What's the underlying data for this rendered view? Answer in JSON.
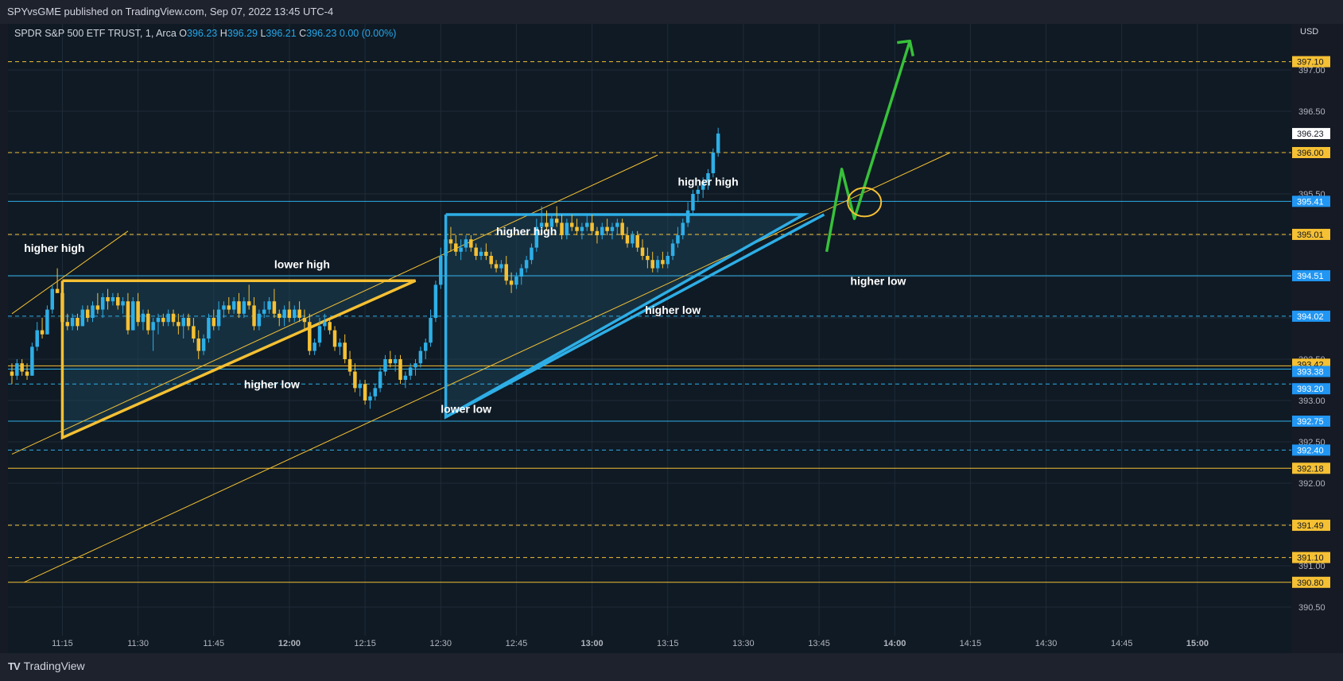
{
  "header": {
    "published": "SPYvsGME published on TradingView.com, Sep 07, 2022 13:45 UTC-4"
  },
  "legend": {
    "symbol": "SPDR S&P 500 ETF TRUST, 1, Arca",
    "o_label": "O",
    "o": "396.23",
    "h_label": "H",
    "h": "396.29",
    "l_label": "L",
    "l": "396.21",
    "c_label": "C",
    "c": "396.23",
    "change": "0.00 (0.00%)"
  },
  "price_axis": {
    "currency": "USD"
  },
  "footer": {
    "brand": "TradingView",
    "logo_icon": "tradingview-logo-icon"
  },
  "colors": {
    "yellow": "#f5c033",
    "blue": "#2eaee6",
    "green": "#37c13a",
    "grid": "#1f2b37",
    "label_bg_yellow": "#f5c033",
    "label_bg_blue": "#2196f3"
  },
  "chart_data": {
    "type": "candlestick",
    "symbol": "SPY",
    "interval": "1",
    "ylim": [
      390.2,
      397.6
    ],
    "y_ticks": [
      "390.50",
      "391.00",
      "391.50",
      "392.00",
      "392.50",
      "393.00",
      "393.50",
      "394.00",
      "394.50",
      "395.00",
      "395.50",
      "396.00",
      "396.50",
      "397.00"
    ],
    "x_ticks": [
      "11:15",
      "11:30",
      "11:45",
      "12:00",
      "12:15",
      "12:30",
      "12:45",
      "13:00",
      "13:15",
      "13:30",
      "13:45",
      "14:00",
      "14:15",
      "14:30",
      "14:45",
      "15:00"
    ],
    "x_tick_minutes": [
      675,
      690,
      705,
      720,
      735,
      750,
      765,
      780,
      795,
      810,
      825,
      840,
      855,
      870,
      885,
      900
    ],
    "x_range_minutes": [
      665,
      909
    ],
    "current_price": "396.23",
    "horizontal_levels": [
      {
        "price": 397.1,
        "label": "397.10",
        "color": "yellow",
        "style": "dashed"
      },
      {
        "price": 396.0,
        "label": "396.00",
        "color": "yellow",
        "style": "dashed"
      },
      {
        "price": 395.41,
        "label": "395.41",
        "color": "blue",
        "style": "solid"
      },
      {
        "price": 395.01,
        "label": "395.01",
        "color": "yellow",
        "style": "dashed"
      },
      {
        "price": 394.51,
        "label": "394.51",
        "color": "blue",
        "style": "solid"
      },
      {
        "price": 394.02,
        "label": "394.02",
        "color": "blue",
        "style": "dashed"
      },
      {
        "price": 393.42,
        "label": "393.42",
        "color": "yellow",
        "style": "solid"
      },
      {
        "price": 393.38,
        "label": "393.38",
        "color": "blue",
        "style": "solid"
      },
      {
        "price": 393.2,
        "label": "393.20",
        "color": "blue",
        "style": "dashed"
      },
      {
        "price": 392.75,
        "label": "392.75",
        "color": "blue",
        "style": "solid"
      },
      {
        "price": 392.4,
        "label": "392.40",
        "color": "blue",
        "style": "dashed"
      },
      {
        "price": 392.18,
        "label": "392.18",
        "color": "yellow",
        "style": "solid"
      },
      {
        "price": 391.49,
        "label": "391.49",
        "color": "yellow",
        "style": "dashed"
      },
      {
        "price": 391.1,
        "label": "391.10",
        "color": "yellow",
        "style": "dashed"
      },
      {
        "price": 390.8,
        "label": "390.80",
        "color": "yellow",
        "style": "solid"
      }
    ],
    "candles": [
      [
        665,
        393.35,
        393.45,
        393.2,
        393.3
      ],
      [
        666,
        393.3,
        393.5,
        393.25,
        393.45
      ],
      [
        667,
        393.45,
        393.5,
        393.3,
        393.35
      ],
      [
        668,
        393.35,
        393.45,
        393.25,
        393.3
      ],
      [
        669,
        393.3,
        393.7,
        393.3,
        393.65
      ],
      [
        670,
        393.65,
        393.95,
        393.6,
        393.85
      ],
      [
        671,
        393.85,
        394.0,
        393.75,
        393.8
      ],
      [
        672,
        393.8,
        394.15,
        393.8,
        394.1
      ],
      [
        673,
        394.1,
        394.4,
        394.05,
        394.35
      ],
      [
        674,
        394.35,
        394.6,
        394.3,
        394.3
      ],
      [
        675,
        394.3,
        394.35,
        393.85,
        393.95
      ],
      [
        676,
        393.95,
        394.05,
        393.85,
        393.9
      ],
      [
        677,
        393.9,
        394.05,
        393.85,
        394.0
      ],
      [
        678,
        394.0,
        394.05,
        393.85,
        393.9
      ],
      [
        679,
        393.9,
        394.15,
        393.9,
        394.1
      ],
      [
        680,
        394.1,
        394.15,
        393.95,
        394.0
      ],
      [
        681,
        394.0,
        394.2,
        393.95,
        394.15
      ],
      [
        682,
        394.15,
        394.3,
        394.05,
        394.1
      ],
      [
        683,
        394.1,
        394.3,
        394.0,
        394.25
      ],
      [
        684,
        394.25,
        394.35,
        394.1,
        394.2
      ],
      [
        685,
        394.2,
        394.3,
        394.15,
        394.25
      ],
      [
        686,
        394.25,
        394.3,
        394.1,
        394.15
      ],
      [
        687,
        394.15,
        394.25,
        394.05,
        394.2
      ],
      [
        688,
        394.2,
        394.3,
        393.8,
        393.85
      ],
      [
        689,
        393.85,
        394.25,
        393.85,
        394.2
      ],
      [
        690,
        394.2,
        394.3,
        393.9,
        393.95
      ],
      [
        691,
        393.95,
        394.1,
        393.85,
        394.05
      ],
      [
        692,
        394.05,
        394.1,
        393.8,
        393.85
      ],
      [
        693,
        393.85,
        394.0,
        393.6,
        393.95
      ],
      [
        694,
        393.95,
        394.05,
        393.8,
        394.0
      ],
      [
        695,
        394.0,
        394.05,
        393.9,
        393.95
      ],
      [
        696,
        393.95,
        394.1,
        393.9,
        394.05
      ],
      [
        697,
        394.05,
        394.1,
        393.9,
        393.95
      ],
      [
        698,
        393.95,
        394.05,
        393.8,
        393.9
      ],
      [
        699,
        393.9,
        394.05,
        393.75,
        394.0
      ],
      [
        700,
        394.0,
        394.05,
        393.85,
        393.9
      ],
      [
        701,
        393.9,
        394.0,
        393.7,
        393.75
      ],
      [
        702,
        393.75,
        393.85,
        393.5,
        393.6
      ],
      [
        703,
        393.6,
        393.8,
        393.55,
        393.75
      ],
      [
        704,
        393.75,
        394.05,
        393.7,
        394.0
      ],
      [
        705,
        394.0,
        394.1,
        393.85,
        393.9
      ],
      [
        706,
        393.9,
        394.2,
        393.85,
        394.1
      ],
      [
        707,
        394.1,
        394.2,
        394.0,
        394.15
      ],
      [
        708,
        394.15,
        394.25,
        394.05,
        394.1
      ],
      [
        709,
        394.1,
        394.25,
        394.05,
        394.2
      ],
      [
        710,
        394.2,
        394.3,
        394.0,
        394.05
      ],
      [
        711,
        394.05,
        394.25,
        394.0,
        394.2
      ],
      [
        712,
        394.2,
        394.4,
        394.1,
        394.15
      ],
      [
        713,
        394.15,
        394.25,
        393.85,
        393.9
      ],
      [
        714,
        393.9,
        394.1,
        393.85,
        394.05
      ],
      [
        715,
        394.05,
        394.2,
        394.0,
        394.1
      ],
      [
        716,
        394.1,
        394.25,
        394.05,
        394.2
      ],
      [
        717,
        394.2,
        394.35,
        394.0,
        394.05
      ],
      [
        718,
        394.05,
        394.1,
        393.9,
        394.0
      ],
      [
        719,
        394.0,
        394.15,
        393.9,
        394.1
      ],
      [
        720,
        394.1,
        394.2,
        393.95,
        394.0
      ],
      [
        721,
        394.0,
        394.15,
        393.95,
        394.1
      ],
      [
        722,
        394.1,
        394.2,
        393.95,
        394.0
      ],
      [
        723,
        394.0,
        394.1,
        393.85,
        393.95
      ],
      [
        724,
        393.95,
        394.05,
        393.55,
        393.6
      ],
      [
        725,
        393.6,
        393.75,
        393.55,
        393.7
      ],
      [
        726,
        393.7,
        394.0,
        393.65,
        393.9
      ],
      [
        727,
        393.9,
        394.05,
        393.85,
        393.95
      ],
      [
        728,
        393.95,
        394.0,
        393.8,
        393.85
      ],
      [
        729,
        393.85,
        393.9,
        393.6,
        393.65
      ],
      [
        730,
        393.65,
        393.75,
        393.55,
        393.7
      ],
      [
        731,
        393.7,
        393.8,
        393.45,
        393.5
      ],
      [
        732,
        393.5,
        393.6,
        393.3,
        393.35
      ],
      [
        733,
        393.35,
        393.45,
        393.1,
        393.15
      ],
      [
        734,
        393.15,
        393.25,
        393.05,
        393.2
      ],
      [
        735,
        393.2,
        393.25,
        392.95,
        393.0
      ],
      [
        736,
        393.0,
        393.1,
        392.9,
        393.05
      ],
      [
        737,
        393.05,
        393.2,
        393.0,
        393.15
      ],
      [
        738,
        393.15,
        393.4,
        393.1,
        393.35
      ],
      [
        739,
        393.35,
        393.55,
        393.3,
        393.5
      ],
      [
        740,
        393.5,
        393.6,
        393.4,
        393.45
      ],
      [
        741,
        393.45,
        393.55,
        393.35,
        393.5
      ],
      [
        742,
        393.5,
        393.55,
        393.2,
        393.25
      ],
      [
        743,
        393.25,
        393.35,
        393.15,
        393.3
      ],
      [
        744,
        393.3,
        393.45,
        393.25,
        393.4
      ],
      [
        745,
        393.4,
        393.5,
        393.3,
        393.45
      ],
      [
        746,
        393.45,
        393.65,
        393.4,
        393.6
      ],
      [
        747,
        393.6,
        393.75,
        393.5,
        393.7
      ],
      [
        748,
        393.7,
        394.1,
        393.65,
        394.0
      ],
      [
        749,
        394.0,
        394.45,
        393.95,
        394.4
      ],
      [
        750,
        394.4,
        394.85,
        394.35,
        394.75
      ],
      [
        751,
        394.75,
        395.05,
        394.7,
        394.95
      ],
      [
        752,
        394.95,
        395.1,
        394.8,
        394.9
      ],
      [
        753,
        394.9,
        395.0,
        394.75,
        394.8
      ],
      [
        754,
        394.8,
        394.95,
        394.7,
        394.85
      ],
      [
        755,
        394.85,
        395.0,
        394.8,
        394.95
      ],
      [
        756,
        394.95,
        395.0,
        394.8,
        394.85
      ],
      [
        757,
        394.85,
        394.9,
        394.7,
        394.75
      ],
      [
        758,
        394.75,
        394.85,
        394.7,
        394.8
      ],
      [
        759,
        394.8,
        394.9,
        394.7,
        394.75
      ],
      [
        760,
        394.75,
        394.8,
        394.6,
        394.65
      ],
      [
        761,
        394.65,
        394.7,
        394.55,
        394.6
      ],
      [
        762,
        394.6,
        394.7,
        394.55,
        394.65
      ],
      [
        763,
        394.65,
        394.75,
        394.4,
        394.45
      ],
      [
        764,
        394.45,
        394.55,
        394.3,
        394.4
      ],
      [
        765,
        394.4,
        394.55,
        394.35,
        394.5
      ],
      [
        766,
        394.5,
        394.65,
        394.4,
        394.6
      ],
      [
        767,
        394.6,
        394.75,
        394.55,
        394.7
      ],
      [
        768,
        394.7,
        394.9,
        394.65,
        394.85
      ],
      [
        769,
        394.85,
        395.2,
        394.8,
        395.1
      ],
      [
        770,
        395.1,
        395.35,
        395.0,
        395.15
      ],
      [
        771,
        395.15,
        395.3,
        395.05,
        395.1
      ],
      [
        772,
        395.1,
        395.25,
        395.0,
        395.2
      ],
      [
        773,
        395.2,
        395.35,
        395.1,
        395.15
      ],
      [
        774,
        395.15,
        395.25,
        394.95,
        395.0
      ],
      [
        775,
        395.0,
        395.2,
        394.95,
        395.15
      ],
      [
        776,
        395.15,
        395.25,
        395.05,
        395.1
      ],
      [
        777,
        395.1,
        395.2,
        395.0,
        395.05
      ],
      [
        778,
        395.05,
        395.15,
        394.95,
        395.1
      ],
      [
        779,
        395.1,
        395.25,
        395.05,
        395.15
      ],
      [
        780,
        395.15,
        395.25,
        395.0,
        395.05
      ],
      [
        781,
        395.05,
        395.1,
        394.9,
        395.0
      ],
      [
        782,
        395.0,
        395.15,
        394.95,
        395.1
      ],
      [
        783,
        395.1,
        395.2,
        395.0,
        395.05
      ],
      [
        784,
        395.05,
        395.15,
        394.95,
        395.1
      ],
      [
        785,
        395.1,
        395.2,
        395.0,
        395.15
      ],
      [
        786,
        395.15,
        395.2,
        394.95,
        395.0
      ],
      [
        787,
        395.0,
        395.1,
        394.85,
        394.9
      ],
      [
        788,
        394.9,
        395.05,
        394.85,
        395.0
      ],
      [
        789,
        395.0,
        395.05,
        394.8,
        394.85
      ],
      [
        790,
        394.85,
        394.95,
        394.7,
        394.75
      ],
      [
        791,
        394.75,
        394.85,
        394.6,
        394.7
      ],
      [
        792,
        394.7,
        394.8,
        394.55,
        394.6
      ],
      [
        793,
        394.6,
        394.75,
        394.55,
        394.7
      ],
      [
        794,
        394.7,
        394.8,
        394.6,
        394.65
      ],
      [
        795,
        394.65,
        394.8,
        394.6,
        394.75
      ],
      [
        796,
        394.75,
        394.95,
        394.7,
        394.9
      ],
      [
        797,
        394.9,
        395.1,
        394.85,
        395.0
      ],
      [
        798,
        395.0,
        395.2,
        394.95,
        395.15
      ],
      [
        799,
        395.15,
        395.4,
        395.1,
        395.3
      ],
      [
        800,
        395.3,
        395.55,
        395.25,
        395.5
      ],
      [
        801,
        395.5,
        395.6,
        395.4,
        395.55
      ],
      [
        802,
        395.55,
        395.7,
        395.45,
        395.65
      ],
      [
        803,
        395.65,
        395.8,
        395.55,
        395.75
      ],
      [
        804,
        395.75,
        396.05,
        395.7,
        396.0
      ],
      [
        805,
        396.0,
        396.3,
        395.95,
        396.23
      ]
    ]
  },
  "annotations": {
    "labels": [
      {
        "text": "higher high",
        "price": 394.8,
        "time": 667.4
      },
      {
        "text": "lower high",
        "price": 394.6,
        "time": 717
      },
      {
        "text": "higher low",
        "price": 393.15,
        "time": 711
      },
      {
        "text": "higher high",
        "price": 395.0,
        "time": 761
      },
      {
        "text": "lower low",
        "price": 392.85,
        "time": 750
      },
      {
        "text": "higher high",
        "price": 395.6,
        "time": 797
      },
      {
        "text": "higher low",
        "price": 394.05,
        "time": 790.5
      },
      {
        "text": "higher low",
        "price": 394.4,
        "time": 831.2
      }
    ],
    "yellow_triangle": [
      [
        675,
        394.45
      ],
      [
        745,
        394.45
      ],
      [
        675,
        392.55
      ]
    ],
    "blue_triangle": [
      [
        751,
        395.25
      ],
      [
        822,
        395.25
      ],
      [
        751,
        392.8
      ]
    ],
    "green_path": [
      [
        826.5,
        394.8
      ],
      [
        829.5,
        395.8
      ],
      [
        832,
        395.2
      ],
      [
        843,
        397.35
      ]
    ],
    "target_circle": {
      "time": 834,
      "price": 395.4
    }
  }
}
